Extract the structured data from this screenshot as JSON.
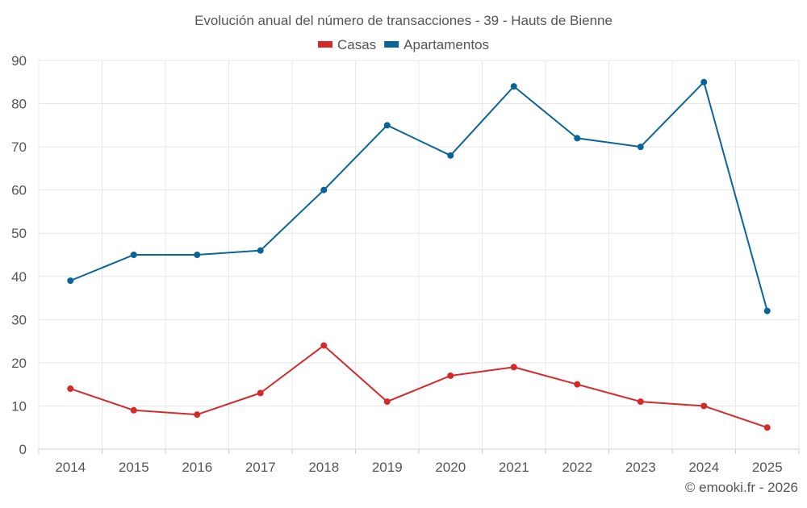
{
  "chart_data": {
    "type": "line",
    "title": "Evolución anual del número de transacciones - 39 - Hauts de Bienne",
    "categories": [
      "2014",
      "2015",
      "2016",
      "2017",
      "2018",
      "2019",
      "2020",
      "2021",
      "2022",
      "2023",
      "2024",
      "2025"
    ],
    "series": [
      {
        "name": "Casas",
        "color": "#d42a2a",
        "values": [
          14,
          9,
          8,
          13,
          24,
          11,
          17,
          19,
          15,
          11,
          10,
          5
        ]
      },
      {
        "name": "Apartamentos",
        "color": "#0a6497",
        "values": [
          39,
          45,
          45,
          46,
          60,
          75,
          68,
          84,
          72,
          70,
          85,
          32
        ]
      }
    ],
    "ylim": [
      0,
      90
    ],
    "yticks": [
      0,
      10,
      20,
      30,
      40,
      50,
      60,
      70,
      80,
      90
    ],
    "xlabel": "",
    "ylabel": "",
    "grid": true,
    "legend_position": "top-center"
  },
  "credit": "© emooki.fr - 2026"
}
